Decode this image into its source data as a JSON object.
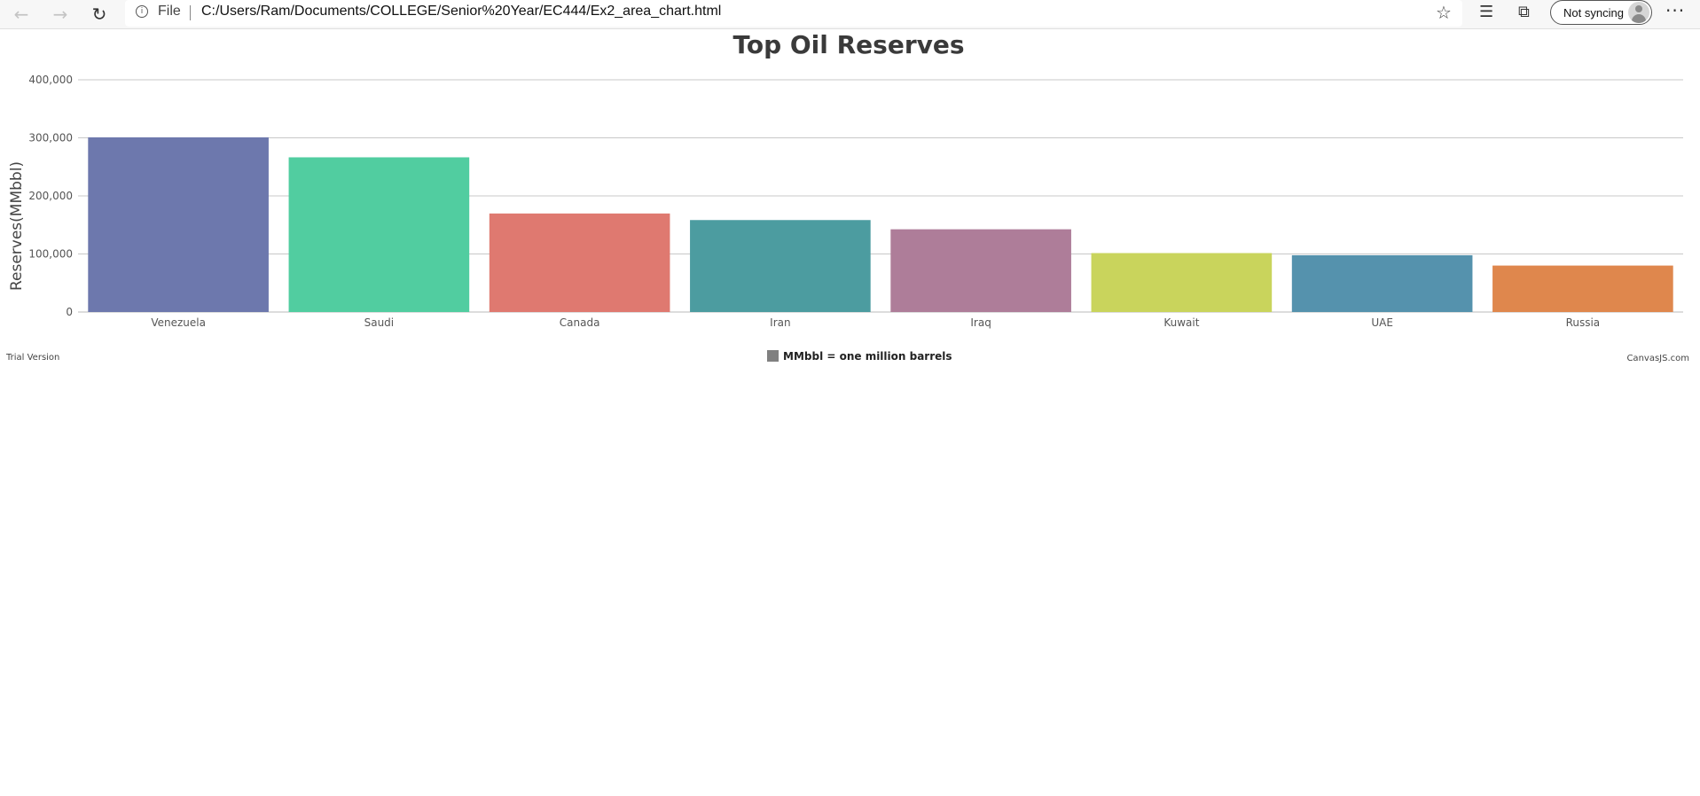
{
  "browser": {
    "back_icon": "arrow-left-icon",
    "forward_icon": "arrow-right-icon",
    "refresh_icon": "refresh-icon",
    "site_info_icon": "info-icon",
    "file_label": "File",
    "url": "C:/Users/Ram/Documents/COLLEGE/Senior%20Year/EC444/Ex2_area_chart.html",
    "favorite_icon": "star-icon",
    "favorites_icon": "favorites-list-icon",
    "collections_icon": "collections-icon",
    "sync_label": "Not syncing",
    "more_icon": "more-icon"
  },
  "chart_data": {
    "type": "bar",
    "title": "Top Oil Reserves",
    "ylabel": "Reserves(MMbbl)",
    "xlabel": "",
    "categories": [
      "Venezuela",
      "Saudi",
      "Canada",
      "Iran",
      "Iraq",
      "Kuwait",
      "UAE",
      "Russia"
    ],
    "values": [
      300878,
      266455,
      169709,
      158400,
      142503,
      101500,
      97800,
      80000
    ],
    "colors": [
      "#6d78ad",
      "#51cda0",
      "#df7970",
      "#4c9ca0",
      "#ae7d99",
      "#c9d45c",
      "#5592ad",
      "#df874d"
    ],
    "ylim": [
      0,
      400000
    ],
    "yticks": [
      0,
      100000,
      200000,
      300000,
      400000
    ],
    "ytick_labels": [
      "0",
      "100,000",
      "200,000",
      "300,000",
      "400,000"
    ],
    "grid": true,
    "legend": {
      "label": "MMbbl = one million barrels",
      "color": "#808080",
      "placement": "bottom"
    },
    "footer_left": "Trial Version",
    "footer_right": "CanvasJS.com"
  }
}
